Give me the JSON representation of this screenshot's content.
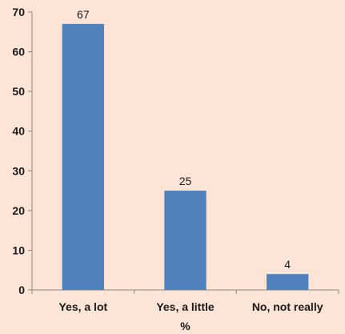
{
  "chart_data": {
    "type": "bar",
    "categories": [
      "Yes, a lot",
      "Yes, a little",
      "No, not really"
    ],
    "values": [
      67,
      25,
      4
    ],
    "data_labels": [
      "67",
      "25",
      "4"
    ],
    "title": "",
    "xlabel": "%",
    "ylabel": "",
    "ylim": [
      0,
      70
    ],
    "yticks": [
      0,
      10,
      20,
      30,
      40,
      50,
      60,
      70
    ],
    "grid": false,
    "legend": "none",
    "bar_color": "#4f81bd",
    "background_color": "#fce4d6"
  }
}
